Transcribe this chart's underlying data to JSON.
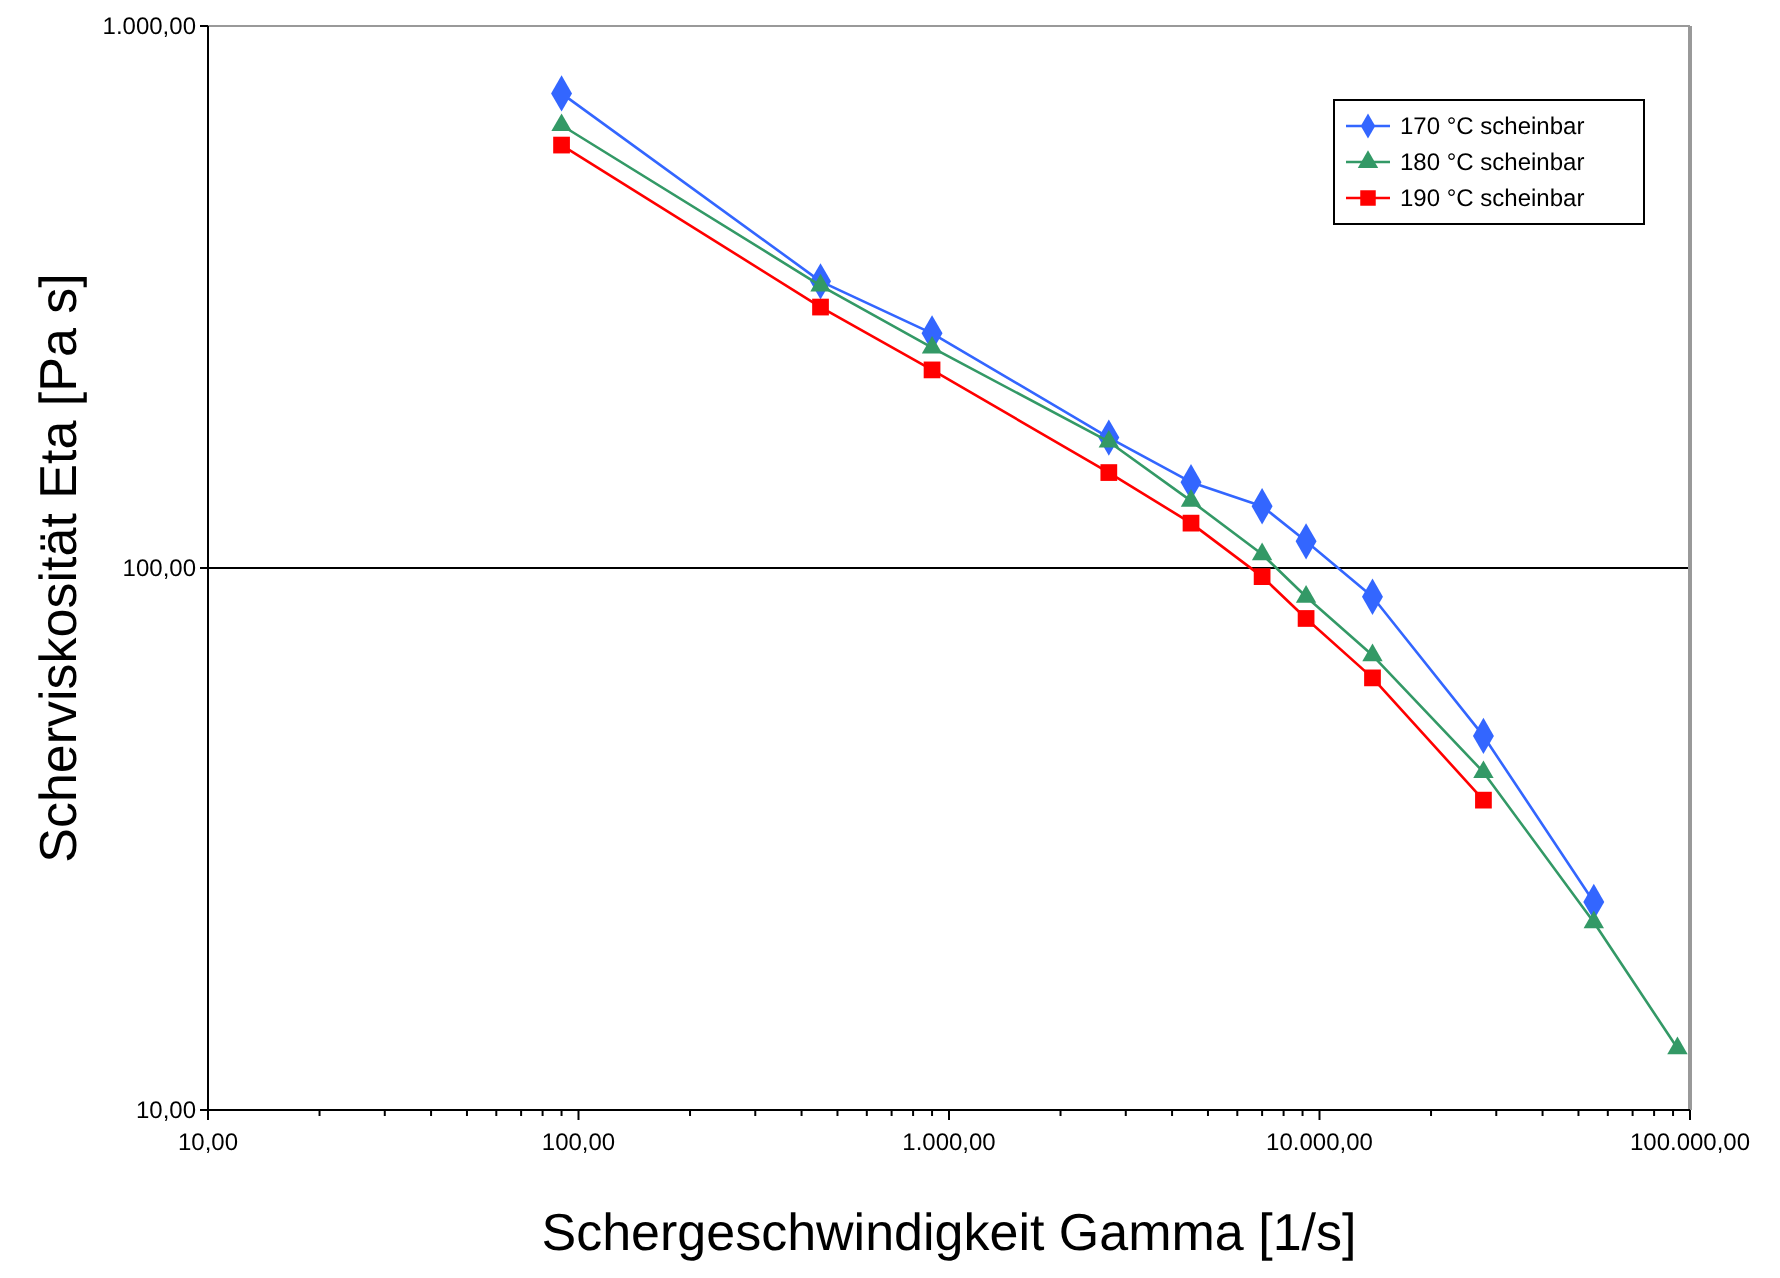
{
  "chart_data": {
    "type": "line",
    "xlabel": "Schergeschwindigkeit   Gamma  [1/s]",
    "ylabel": "Scherviskosität  Eta  [Pa s]",
    "log": "xy",
    "grid": "y",
    "legend": "top right",
    "xlim": [
      10,
      100000
    ],
    "ylim": [
      10,
      1000
    ],
    "xticks": [
      {
        "value": 10,
        "label": "10,00"
      },
      {
        "value": 20,
        "label": null
      },
      {
        "value": 30,
        "label": null
      },
      {
        "value": 40,
        "label": null
      },
      {
        "value": 50,
        "label": null
      },
      {
        "value": 60,
        "label": null
      },
      {
        "value": 70,
        "label": null
      },
      {
        "value": 80,
        "label": null
      },
      {
        "value": 90,
        "label": null
      },
      {
        "value": 100,
        "label": "100,00"
      },
      {
        "value": 200,
        "label": null
      },
      {
        "value": 300,
        "label": null
      },
      {
        "value": 400,
        "label": null
      },
      {
        "value": 500,
        "label": null
      },
      {
        "value": 600,
        "label": null
      },
      {
        "value": 700,
        "label": null
      },
      {
        "value": 800,
        "label": null
      },
      {
        "value": 900,
        "label": null
      },
      {
        "value": 1000,
        "label": "1.000,00"
      },
      {
        "value": 2000,
        "label": null
      },
      {
        "value": 3000,
        "label": null
      },
      {
        "value": 4000,
        "label": null
      },
      {
        "value": 5000,
        "label": null
      },
      {
        "value": 6000,
        "label": null
      },
      {
        "value": 7000,
        "label": null
      },
      {
        "value": 8000,
        "label": null
      },
      {
        "value": 9000,
        "label": null
      },
      {
        "value": 10000,
        "label": "10.000,00"
      },
      {
        "value": 20000,
        "label": null
      },
      {
        "value": 30000,
        "label": null
      },
      {
        "value": 40000,
        "label": null
      },
      {
        "value": 50000,
        "label": null
      },
      {
        "value": 60000,
        "label": null
      },
      {
        "value": 70000,
        "label": null
      },
      {
        "value": 80000,
        "label": null
      },
      {
        "value": 90000,
        "label": null
      },
      {
        "value": 100000,
        "label": "100.000,00"
      }
    ],
    "yticks": [
      {
        "value": 10,
        "label": "10,00"
      },
      {
        "value": 100,
        "label": "100,00"
      },
      {
        "value": 1000,
        "label": "1.000,00"
      }
    ],
    "series": [
      {
        "name": "170 °C scheinbar",
        "color": "#3366ff",
        "marker": "diamond",
        "x": [
          90,
          450,
          900,
          2700,
          4500,
          7000,
          9200,
          13900,
          27700,
          55000
        ],
        "values": [
          751,
          338,
          271,
          174,
          144,
          130,
          112,
          88.5,
          49,
          24.2
        ]
      },
      {
        "name": "180 °C scheinbar",
        "color": "#339966",
        "marker": "triangle",
        "x": [
          90,
          450,
          900,
          2700,
          4500,
          7000,
          9200,
          13900,
          27700,
          55000,
          92500
        ],
        "values": [
          656,
          332,
          255,
          171,
          133,
          106,
          88.5,
          69,
          42,
          22.2,
          13
        ]
      },
      {
        "name": "190 °C scheinbar",
        "color": "#ff0000",
        "marker": "square",
        "x": [
          90,
          450,
          900,
          2700,
          4500,
          7000,
          9200,
          13900,
          27700
        ],
        "values": [
          603,
          303,
          232,
          150,
          121,
          96.4,
          80.7,
          62.7,
          37.3
        ]
      }
    ]
  }
}
